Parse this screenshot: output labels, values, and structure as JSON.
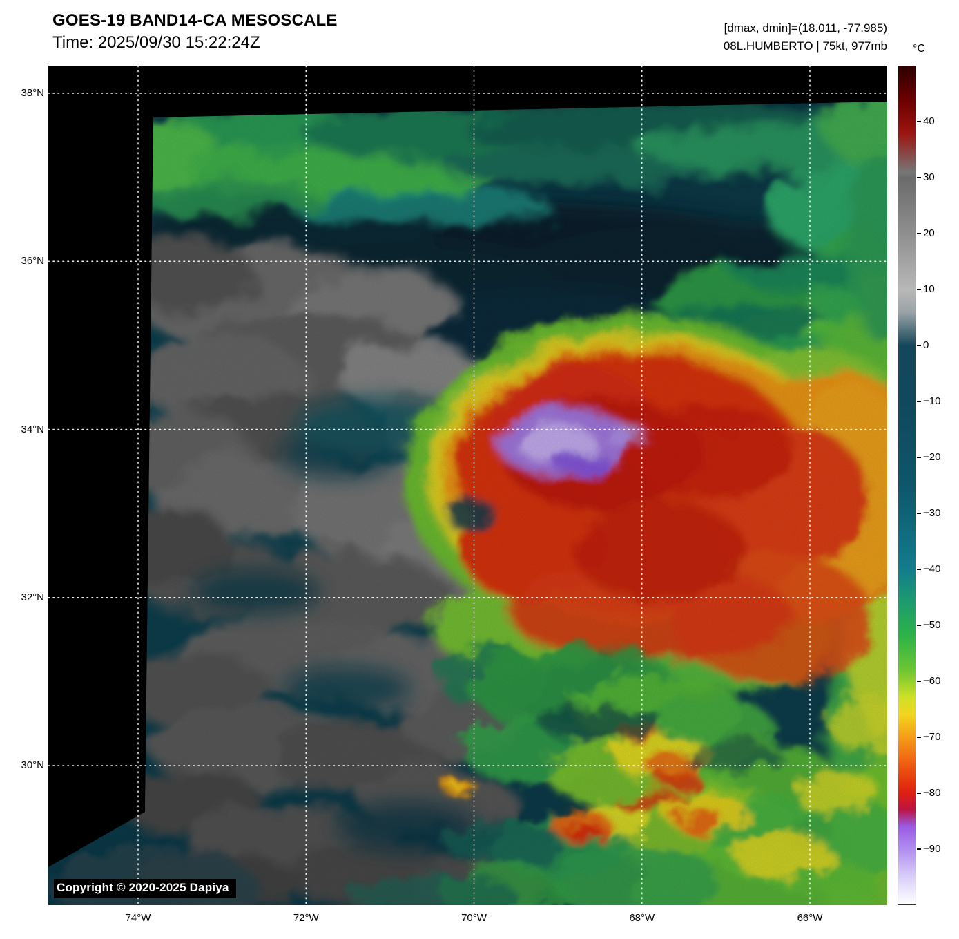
{
  "header": {
    "title": "GOES-19 BAND14-CA MESOSCALE",
    "time_line": "Time: 2025/09/30 15:22:24Z",
    "dmax_dmin": "[dmax, dmin]=(18.011, -77.985)",
    "storm_info": "08L.HUMBERTO | 75kt, 977mb"
  },
  "map": {
    "copyright": "Copyright © 2020-2025 Dapiya"
  },
  "axes": {
    "lat_ticks": [
      {
        "v": 38,
        "label": "38°N"
      },
      {
        "v": 36,
        "label": "36°N"
      },
      {
        "v": 34,
        "label": "34°N"
      },
      {
        "v": 32,
        "label": "32°N"
      },
      {
        "v": 30,
        "label": "30°N"
      }
    ],
    "lon_ticks": [
      {
        "v": 74,
        "label": "74°W"
      },
      {
        "v": 72,
        "label": "72°W"
      },
      {
        "v": 70,
        "label": "70°W"
      },
      {
        "v": 68,
        "label": "68°W"
      },
      {
        "v": 66,
        "label": "66°W"
      }
    ]
  },
  "colorbar": {
    "unit": "°C",
    "range": [
      50,
      -100
    ],
    "ticks": [
      {
        "v": 40,
        "label": "40"
      },
      {
        "v": 30,
        "label": "30"
      },
      {
        "v": 20,
        "label": "20"
      },
      {
        "v": 10,
        "label": "10"
      },
      {
        "v": 0,
        "label": "0"
      },
      {
        "v": -10,
        "label": "−10"
      },
      {
        "v": -20,
        "label": "−20"
      },
      {
        "v": -30,
        "label": "−30"
      },
      {
        "v": -40,
        "label": "−40"
      },
      {
        "v": -50,
        "label": "−50"
      },
      {
        "v": -60,
        "label": "−60"
      },
      {
        "v": -70,
        "label": "−70"
      },
      {
        "v": -80,
        "label": "−80"
      },
      {
        "v": -90,
        "label": "−90"
      }
    ],
    "stops": [
      {
        "v": 50,
        "c": "#2e0000"
      },
      {
        "v": 44,
        "c": "#6b0000"
      },
      {
        "v": 38,
        "c": "#9b1511"
      },
      {
        "v": 31,
        "c": "#777777"
      },
      {
        "v": 30,
        "c": "#6b6b6b"
      },
      {
        "v": 20,
        "c": "#8f8f8f"
      },
      {
        "v": 10,
        "c": "#b8b8b8"
      },
      {
        "v": 6,
        "c": "#9aa3a8"
      },
      {
        "v": 0,
        "c": "#15475a"
      },
      {
        "v": -10,
        "c": "#11485c"
      },
      {
        "v": -25,
        "c": "#0e566b"
      },
      {
        "v": -40,
        "c": "#127c8c"
      },
      {
        "v": -46,
        "c": "#1d9c6e"
      },
      {
        "v": -52,
        "c": "#2eb348"
      },
      {
        "v": -58,
        "c": "#6cc532"
      },
      {
        "v": -63,
        "c": "#cfe026"
      },
      {
        "v": -66,
        "c": "#f2d51f"
      },
      {
        "v": -70,
        "c": "#f59e16"
      },
      {
        "v": -75,
        "c": "#ef5b11"
      },
      {
        "v": -80,
        "c": "#df1f10"
      },
      {
        "v": -83,
        "c": "#bc1342"
      },
      {
        "v": -86,
        "c": "#9a5ae2"
      },
      {
        "v": -90,
        "c": "#b18cf0"
      },
      {
        "v": -95,
        "c": "#d9cdf9"
      },
      {
        "v": -100,
        "c": "#ffffff"
      }
    ]
  }
}
